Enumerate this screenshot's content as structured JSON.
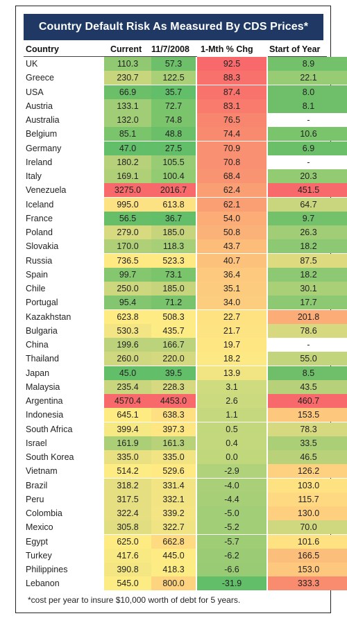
{
  "title": "Country Default Risk As Measured By CDS Prices*",
  "headers": {
    "country": "Country",
    "current": "Current",
    "date": "11/7/2008",
    "chg": "1-Mth % Chg",
    "start": "Start of Year"
  },
  "footnote": "*cost per year to insure $10,000 worth of debt for 5 years.",
  "chart_data": {
    "type": "table",
    "title": "Country Default Risk As Measured By CDS Prices*",
    "columns": [
      "Country",
      "Current",
      "11/7/2008",
      "1-Mth % Chg",
      "Start of Year"
    ],
    "rows": [
      {
        "country": "UK",
        "current": "110.3",
        "date": "57.3",
        "chg": "92.5",
        "start": "8.9",
        "colors": [
          "#91c973",
          "#6dbf6a",
          "#f8696b",
          "#74c16b"
        ]
      },
      {
        "country": "Greece",
        "current": "230.7",
        "date": "122.5",
        "chg": "88.3",
        "start": "22.1",
        "colors": [
          "#c7d57c",
          "#a9cf77",
          "#f8716c",
          "#97cc74"
        ]
      },
      {
        "country": "USA",
        "current": "66.9",
        "date": "35.7",
        "chg": "87.4",
        "start": "8.0",
        "colors": [
          "#6cbf69",
          "#63be69",
          "#f8736c",
          "#6fbf6a"
        ]
      },
      {
        "country": "Austria",
        "current": "133.1",
        "date": "72.7",
        "chg": "83.1",
        "start": "8.1",
        "colors": [
          "#a0cd75",
          "#7ac46c",
          "#f87b6d",
          "#6fbf6a"
        ]
      },
      {
        "country": "Australia",
        "current": "132.0",
        "date": "74.8",
        "chg": "76.5",
        "start": "-",
        "colors": [
          "#a0cd75",
          "#7cc46c",
          "#f8866f",
          "#ffffff"
        ]
      },
      {
        "country": "Belgium",
        "current": "85.1",
        "date": "48.8",
        "chg": "74.4",
        "start": "10.6",
        "colors": [
          "#7ac46c",
          "#6bbf69",
          "#f88a70",
          "#7ac46c"
        ]
      },
      {
        "country": "Germany",
        "current": "47.0",
        "date": "27.5",
        "chg": "70.9",
        "start": "6.9",
        "colors": [
          "#63be69",
          "#63be69",
          "#f99071",
          "#6bbf69"
        ]
      },
      {
        "country": "Ireland",
        "current": "180.2",
        "date": "105.5",
        "chg": "70.8",
        "start": "-",
        "colors": [
          "#b6d179",
          "#97cc74",
          "#f99071",
          "#ffffff"
        ]
      },
      {
        "country": "Italy",
        "current": "169.1",
        "date": "100.4",
        "chg": "68.4",
        "start": "20.3",
        "colors": [
          "#b0d078",
          "#93cb73",
          "#f99472",
          "#93cb73"
        ]
      },
      {
        "country": "Venezuela",
        "current": "3275.0",
        "date": "2016.7",
        "chg": "62.4",
        "start": "451.5",
        "colors": [
          "#f8696b",
          "#f8696b",
          "#fa9e74",
          "#f8696b"
        ]
      },
      {
        "country": "Iceland",
        "current": "995.0",
        "date": "613.8",
        "chg": "62.1",
        "start": "64.7",
        "colors": [
          "#fde283",
          "#fde283",
          "#fa9f74",
          "#c9d67d"
        ]
      },
      {
        "country": "France",
        "current": "56.5",
        "date": "36.7",
        "chg": "54.0",
        "start": "9.7",
        "colors": [
          "#66be69",
          "#63be69",
          "#fbac77",
          "#74c16b"
        ]
      },
      {
        "country": "Poland",
        "current": "279.0",
        "date": "185.0",
        "chg": "50.8",
        "start": "26.3",
        "colors": [
          "#d8da80",
          "#c6d57c",
          "#fbb278",
          "#a0cd75"
        ]
      },
      {
        "country": "Slovakia",
        "current": "170.0",
        "date": "118.3",
        "chg": "43.7",
        "start": "18.2",
        "colors": [
          "#b0d078",
          "#a6cf77",
          "#fcbd7b",
          "#8cc972"
        ]
      },
      {
        "country": "Russia",
        "current": "736.5",
        "date": "523.3",
        "chg": "40.7",
        "start": "87.5",
        "colors": [
          "#fee983",
          "#fee983",
          "#fcc27c",
          "#ddda80"
        ]
      },
      {
        "country": "Spain",
        "current": "99.7",
        "date": "73.1",
        "chg": "36.4",
        "start": "18.2",
        "colors": [
          "#85c76f",
          "#7ac46c",
          "#fdc97e",
          "#8cc972"
        ]
      },
      {
        "country": "Chile",
        "current": "250.0",
        "date": "185.0",
        "chg": "35.1",
        "start": "30.1",
        "colors": [
          "#cdd77e",
          "#c6d57c",
          "#fdcb7e",
          "#a9cf77"
        ]
      },
      {
        "country": "Portugal",
        "current": "95.4",
        "date": "71.2",
        "chg": "34.0",
        "start": "17.7",
        "colors": [
          "#83c66f",
          "#78c36c",
          "#fdcd7f",
          "#8cc972"
        ]
      },
      {
        "country": "Kazakhstan",
        "current": "623.8",
        "date": "508.3",
        "chg": "22.7",
        "start": "201.8",
        "colors": [
          "#feec83",
          "#feeb83",
          "#fee282",
          "#fbac77"
        ]
      },
      {
        "country": "Bulgaria",
        "current": "530.3",
        "date": "435.7",
        "chg": "21.7",
        "start": "78.6",
        "colors": [
          "#f3e583",
          "#fdeb83",
          "#fee382",
          "#d7d980"
        ]
      },
      {
        "country": "China",
        "current": "199.6",
        "date": "166.7",
        "chg": "19.7",
        "start": "-",
        "colors": [
          "#bdd37b",
          "#bbd37a",
          "#fee783",
          "#ffffff"
        ]
      },
      {
        "country": "Thailand",
        "current": "260.0",
        "date": "220.0",
        "chg": "18.2",
        "start": "55.0",
        "colors": [
          "#d0d87f",
          "#d4d97f",
          "#fde983",
          "#c3d57c"
        ]
      },
      {
        "country": "Japan",
        "current": "45.0",
        "date": "39.5",
        "chg": "13.9",
        "start": "8.5",
        "colors": [
          "#63be69",
          "#63be69",
          "#f0e483",
          "#6fbf6a"
        ]
      },
      {
        "country": "Malaysia",
        "current": "235.4",
        "date": "228.3",
        "chg": "3.1",
        "start": "43.5",
        "colors": [
          "#c9d67d",
          "#d7d980",
          "#cedb7f",
          "#b6d179"
        ]
      },
      {
        "country": "Argentina",
        "current": "4570.4",
        "date": "4453.0",
        "chg": "2.6",
        "start": "460.7",
        "colors": [
          "#f8696b",
          "#f8696b",
          "#ccda7f",
          "#f8696b"
        ]
      },
      {
        "country": "Indonesia",
        "current": "645.1",
        "date": "638.3",
        "chg": "1.1",
        "start": "153.5",
        "colors": [
          "#feec83",
          "#fedf82",
          "#c6d87d",
          "#fdc77d"
        ]
      },
      {
        "country": "South Africa",
        "current": "399.4",
        "date": "397.3",
        "chg": "0.5",
        "start": "78.3",
        "colors": [
          "#f6e883",
          "#fee683",
          "#c3d77d",
          "#d7d980"
        ]
      },
      {
        "country": "Israel",
        "current": "161.9",
        "date": "161.3",
        "chg": "0.4",
        "start": "33.5",
        "colors": [
          "#abcf77",
          "#b8d27a",
          "#c3d77d",
          "#abcf77"
        ]
      },
      {
        "country": "South Korea",
        "current": "335.0",
        "date": "335.0",
        "chg": "0.0",
        "start": "46.5",
        "colors": [
          "#e9e082",
          "#f3e483",
          "#c1d77c",
          "#b9d27a"
        ]
      },
      {
        "country": "Vietnam",
        "current": "514.2",
        "date": "529.6",
        "chg": "-2.9",
        "start": "126.2",
        "colors": [
          "#fdec83",
          "#fee983",
          "#afd27a",
          "#fdd17f"
        ]
      },
      {
        "country": "Brazil",
        "current": "318.2",
        "date": "331.4",
        "chg": "-4.0",
        "start": "103.0",
        "colors": [
          "#e5df82",
          "#f2e483",
          "#a9d079",
          "#fee282"
        ]
      },
      {
        "country": "Peru",
        "current": "317.5",
        "date": "332.1",
        "chg": "-4.4",
        "start": "115.7",
        "colors": [
          "#e5df82",
          "#f2e483",
          "#a6cf78",
          "#fed981"
        ]
      },
      {
        "country": "Colombia",
        "current": "322.4",
        "date": "339.2",
        "chg": "-5.0",
        "start": "130.0",
        "colors": [
          "#e6df82",
          "#f4e483",
          "#a2ce77",
          "#fdcf7f"
        ]
      },
      {
        "country": "Mexico",
        "current": "305.8",
        "date": "322.7",
        "chg": "-5.2",
        "start": "70.0",
        "colors": [
          "#e1de81",
          "#f0e383",
          "#a1ce77",
          "#d0d87f"
        ]
      },
      {
        "country": "Egypt",
        "current": "625.0",
        "date": "662.8",
        "chg": "-5.7",
        "start": "101.6",
        "colors": [
          "#feec83",
          "#fedb81",
          "#9ecd76",
          "#fee282"
        ]
      },
      {
        "country": "Turkey",
        "current": "417.6",
        "date": "445.0",
        "chg": "-6.2",
        "start": "166.5",
        "colors": [
          "#f8e983",
          "#feeb83",
          "#9bcc75",
          "#fcbe7b"
        ]
      },
      {
        "country": "Philippines",
        "current": "390.8",
        "date": "418.3",
        "chg": "-6.6",
        "start": "153.0",
        "colors": [
          "#f3e683",
          "#fdeb83",
          "#98cb74",
          "#fdc77d"
        ]
      },
      {
        "country": "Lebanon",
        "current": "545.0",
        "date": "800.0",
        "chg": "-31.9",
        "start": "333.3",
        "colors": [
          "#fdec83",
          "#fed380",
          "#63be69",
          "#f98b6f"
        ]
      }
    ]
  }
}
